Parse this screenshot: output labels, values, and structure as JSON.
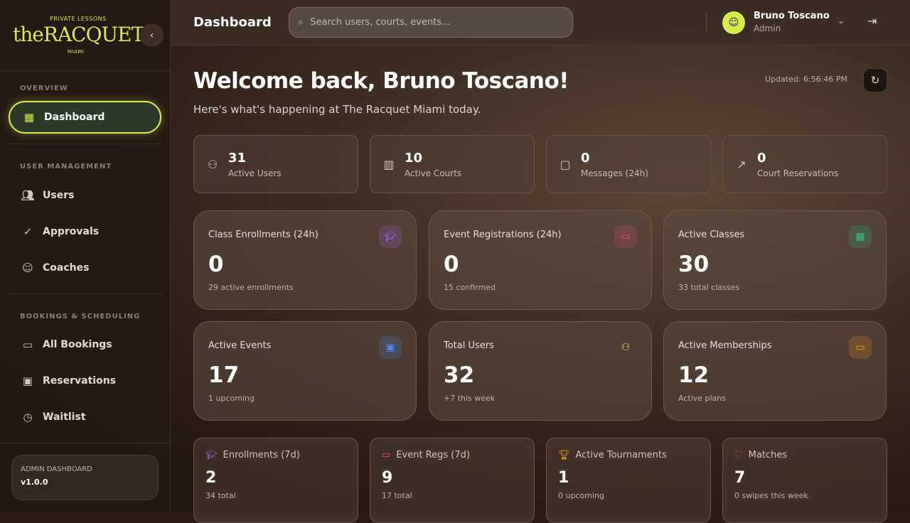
{
  "brand": {
    "top": "PRIVATE LESSONS",
    "name": "theRACQUET",
    "bottom": "MIAMI"
  },
  "sidebar": {
    "sections": [
      "OVERVIEW",
      "USER MANAGEMENT",
      "BOOKINGS & SCHEDULING"
    ],
    "items": [
      {
        "label": "Dashboard",
        "icon": "grid-icon"
      },
      {
        "label": "Users",
        "icon": "users-icon"
      },
      {
        "label": "Approvals",
        "icon": "user-check-icon"
      },
      {
        "label": "Coaches",
        "icon": "user-icon"
      },
      {
        "label": "All Bookings",
        "icon": "ticket-icon"
      },
      {
        "label": "Reservations",
        "icon": "calendar-icon"
      },
      {
        "label": "Waitlist",
        "icon": "clock-icon"
      }
    ],
    "footer": {
      "title": "ADMIN DASHBOARD",
      "version": "v1.0.0"
    }
  },
  "header": {
    "title": "Dashboard",
    "search_placeholder": "Search users, courts, events...",
    "user_name": "Bruno Toscano",
    "user_role": "Admin"
  },
  "main": {
    "welcome": "Welcome back, Bruno Toscano!",
    "subtitle": "Here's what's happening at The Racquet Miami today.",
    "updated": "Updated: 6:56:46 PM",
    "mini_stats": [
      {
        "value": "31",
        "label": "Active Users"
      },
      {
        "value": "10",
        "label": "Active Courts"
      },
      {
        "value": "0",
        "label": "Messages (24h)"
      },
      {
        "value": "0",
        "label": "Court Reservations"
      }
    ],
    "cards": [
      {
        "title": "Class Enrollments (24h)",
        "value": "0",
        "sub": "29 active enrollments",
        "color": "#9b6cf0"
      },
      {
        "title": "Event Registrations (24h)",
        "value": "0",
        "sub": "15 confirmed",
        "color": "#ec4a8c"
      },
      {
        "title": "Active Classes",
        "value": "30",
        "sub": "33 total classes",
        "color": "#34c47c"
      },
      {
        "title": "Active Events",
        "value": "17",
        "sub": "1 upcoming",
        "color": "#4a8cf0"
      },
      {
        "title": "Total Users",
        "value": "32",
        "sub": "+7 this week",
        "color": "#d5ec4c"
      },
      {
        "title": "Active Memberships",
        "value": "12",
        "sub": "Active plans",
        "color": "#f0a020"
      }
    ],
    "small_stats": [
      {
        "title": "Enrollments (7d)",
        "value": "2",
        "sub": "34 total",
        "color": "#9b6cf0"
      },
      {
        "title": "Event Regs (7d)",
        "value": "9",
        "sub": "17 total",
        "color": "#ec4a8c"
      },
      {
        "title": "Active Tournaments",
        "value": "1",
        "sub": "0 upcoming",
        "color": "#f0a020"
      },
      {
        "title": "Matches",
        "value": "7",
        "sub": "0 swipes this week",
        "color": "#ef4444"
      }
    ]
  }
}
